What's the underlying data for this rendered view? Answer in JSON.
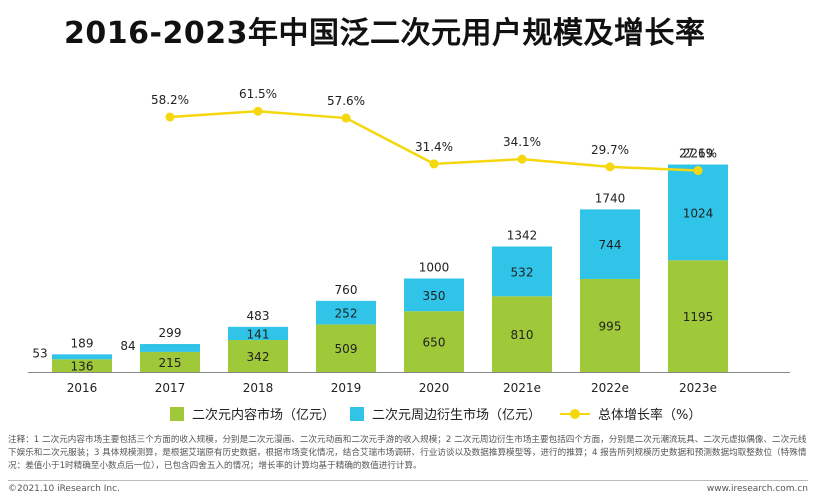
{
  "title": "2016-2023年中国泛二次元用户规模及增长率",
  "colors": {
    "content": "#a0c93a",
    "derivative": "#2fc4e8",
    "rate": "#f5d70e"
  },
  "chart_data": {
    "type": "bar",
    "stacked": true,
    "categories": [
      "2016",
      "2017",
      "2018",
      "2019",
      "2020",
      "2021e",
      "2022e",
      "2023e"
    ],
    "series": [
      {
        "name": "二次元内容市场（亿元）",
        "type": "bar",
        "values": [
          136,
          215,
          342,
          509,
          650,
          810,
          995,
          1195
        ]
      },
      {
        "name": "二次元周边衍生市场（亿元）",
        "type": "bar",
        "values": [
          53,
          84,
          141,
          252,
          350,
          532,
          744,
          1024
        ]
      },
      {
        "name": "总体增长率（%）",
        "type": "line",
        "values": [
          null,
          58.2,
          61.5,
          57.6,
          31.4,
          34.1,
          29.7,
          27.6
        ],
        "labels": [
          "",
          "58.2%",
          "61.5%",
          "57.6%",
          "31.4%",
          "34.1%",
          "29.7%",
          "27.6%"
        ]
      }
    ],
    "totals": [
      189,
      299,
      483,
      760,
      1000,
      1342,
      1740,
      2219
    ],
    "grid": false,
    "legend": "bottom"
  },
  "legend": {
    "content": "二次元内容市场（亿元）",
    "derivative": "二次元周边衍生市场（亿元）",
    "rate": "总体增长率（%）"
  },
  "note": "注释：1 二次元内容市场主要包括三个方面的收入规模，分别是二次元漫画、二次元动画和二次元手游的收入规模；2 二次元周边衍生市场主要包括四个方面，分别是二次元潮流玩具、二次元虚拟偶像、二次元线下娱乐和二次元服装；3 具体规模测算，是根据艾瑞原有历史数据，根据市场变化情况，结合艾瑞市场调研、行业访谈以及数据推算模型等，进行的推算；4 报告所列规模历史数据和预测数据均取整数位（特殊情况：差值小于1时精确至小数点后一位），已包含四舍五入的情况；增长率的计算均基于精确的数值进行计算。",
  "footer": {
    "copyright": "©2021.10 iResearch Inc.",
    "website": "www.iresearch.com.cn"
  }
}
